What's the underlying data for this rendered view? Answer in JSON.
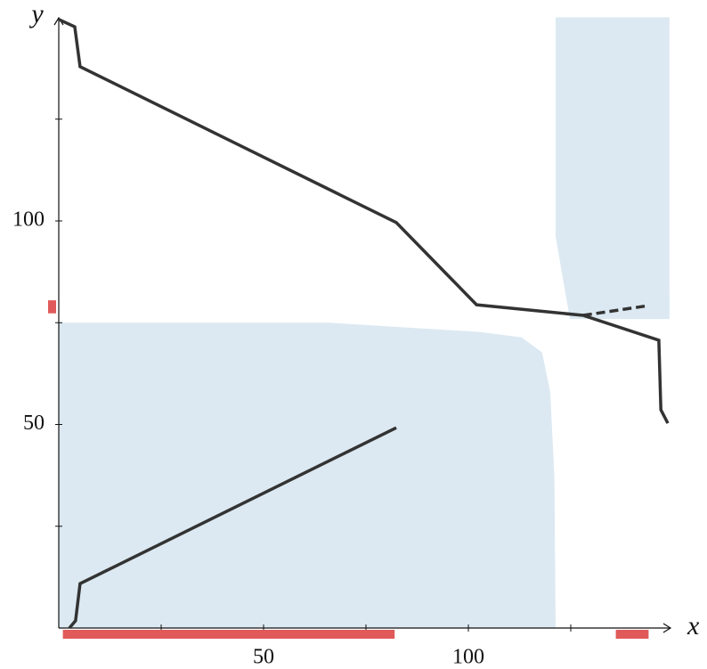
{
  "chart_data": {
    "type": "line",
    "x_label": "x",
    "y_label": "y",
    "xlim": [
      0,
      150
    ],
    "ylim": [
      0,
      150
    ],
    "xticks": [
      50,
      100
    ],
    "yticks": [
      50,
      100
    ],
    "minor_xticks": [
      25,
      75,
      125
    ],
    "minor_yticks": [
      25,
      75,
      125
    ],
    "regions": [
      {
        "color": "#dce9f2",
        "fill": "below",
        "x": [
          0,
          66,
          103,
          113,
          118,
          120,
          121,
          121.3
        ],
        "values": [
          75,
          75,
          72.7,
          71.4,
          67.7,
          57.9,
          37,
          0
        ]
      },
      {
        "color": "#dce9f2",
        "fill": "above",
        "x": [
          121.3,
          121.3,
          122.6,
          124.8,
          149.1
        ],
        "values": [
          150,
          96.3,
          88.6,
          75.9,
          75.9
        ]
      }
    ],
    "series": [
      {
        "color": "#333333",
        "dash": false,
        "x": [
          0,
          3.9,
          5.2,
          82.4,
          102,
          128,
          146.5,
          147,
          148.7
        ],
        "values": [
          149.5,
          147.7,
          137.9,
          99.6,
          79.4,
          76.8,
          70.7,
          53.6,
          50.3
        ]
      },
      {
        "color": "#333333",
        "dash": true,
        "x": [
          128,
          144
        ],
        "values": [
          76.8,
          79.2
        ]
      },
      {
        "color": "#333333",
        "dash": false,
        "x": [
          2.6,
          4.1,
          5.2,
          82.4
        ],
        "values": [
          0,
          1.8,
          10.9,
          49.2
        ]
      }
    ],
    "rug_color": "#e05a5a",
    "rug_x": [
      [
        1,
        82
      ],
      [
        136,
        144
      ]
    ],
    "rug_y": [
      [
        77.3,
        80.5
      ]
    ]
  }
}
